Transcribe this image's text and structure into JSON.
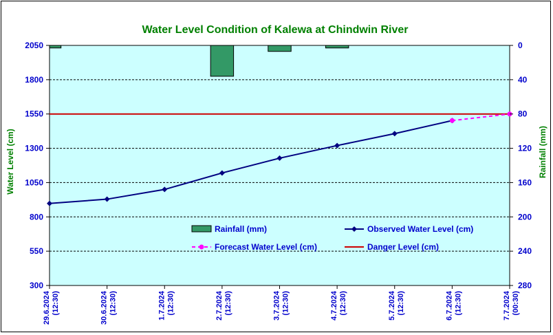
{
  "chart_data": {
    "type": "line",
    "title": "Water Level Condition of Kalewa at Chindwin River",
    "ylabel": "Water Level (cm)",
    "y2label": "Rainfall (mm)",
    "ylim": [
      300,
      2050
    ],
    "y2lim": [
      0,
      280
    ],
    "y2_inverted": true,
    "yticks": [
      "2050",
      "1800",
      "1550",
      "1300",
      "1050",
      "800",
      "550",
      "300"
    ],
    "y2ticks": [
      "0",
      "40",
      "80",
      "120",
      "160",
      "200",
      "240",
      "280"
    ],
    "categories": [
      [
        "29.6.2024",
        "(12:30)"
      ],
      [
        "30.6.2024",
        "(12:30)"
      ],
      [
        "1.7.2024",
        "(12:30)"
      ],
      [
        "2.7.2024",
        "(12:30)"
      ],
      [
        "3.7.2024",
        "(12:30)"
      ],
      [
        "4.7.2024",
        "(12:30)"
      ],
      [
        "5.7.2024",
        "(12:30)"
      ],
      [
        "6.7.2024",
        "(12:30)"
      ],
      [
        "7.7.2024",
        "(00:30)"
      ]
    ],
    "series": [
      {
        "name": "Rainfall (mm)",
        "kind": "bar",
        "axis": "right",
        "color": "#339966",
        "values": [
          3,
          0,
          0,
          36,
          7,
          3,
          0,
          0,
          0
        ]
      },
      {
        "name": "Observed Water Level (cm)",
        "kind": "line",
        "axis": "left",
        "color": "#000080",
        "marker": "diamond",
        "values": [
          898,
          929,
          1000,
          1120,
          1228,
          1320,
          1407,
          1502,
          null
        ]
      },
      {
        "name": "Forecast Water Level (cm)",
        "kind": "line",
        "axis": "left",
        "color": "#ff00ff",
        "dash": true,
        "marker": "circle",
        "values": [
          null,
          null,
          null,
          null,
          null,
          null,
          null,
          1502,
          1550
        ]
      },
      {
        "name": "Danger Level (cm)",
        "kind": "hline",
        "axis": "left",
        "color": "#cc0000",
        "value": 1550
      }
    ],
    "grid": true,
    "plot_background": "#ccffff",
    "title_color": "#008000",
    "axis_label_color": "#008000",
    "tick_color": "#0000cc",
    "legend_position": "inside-bottom"
  }
}
